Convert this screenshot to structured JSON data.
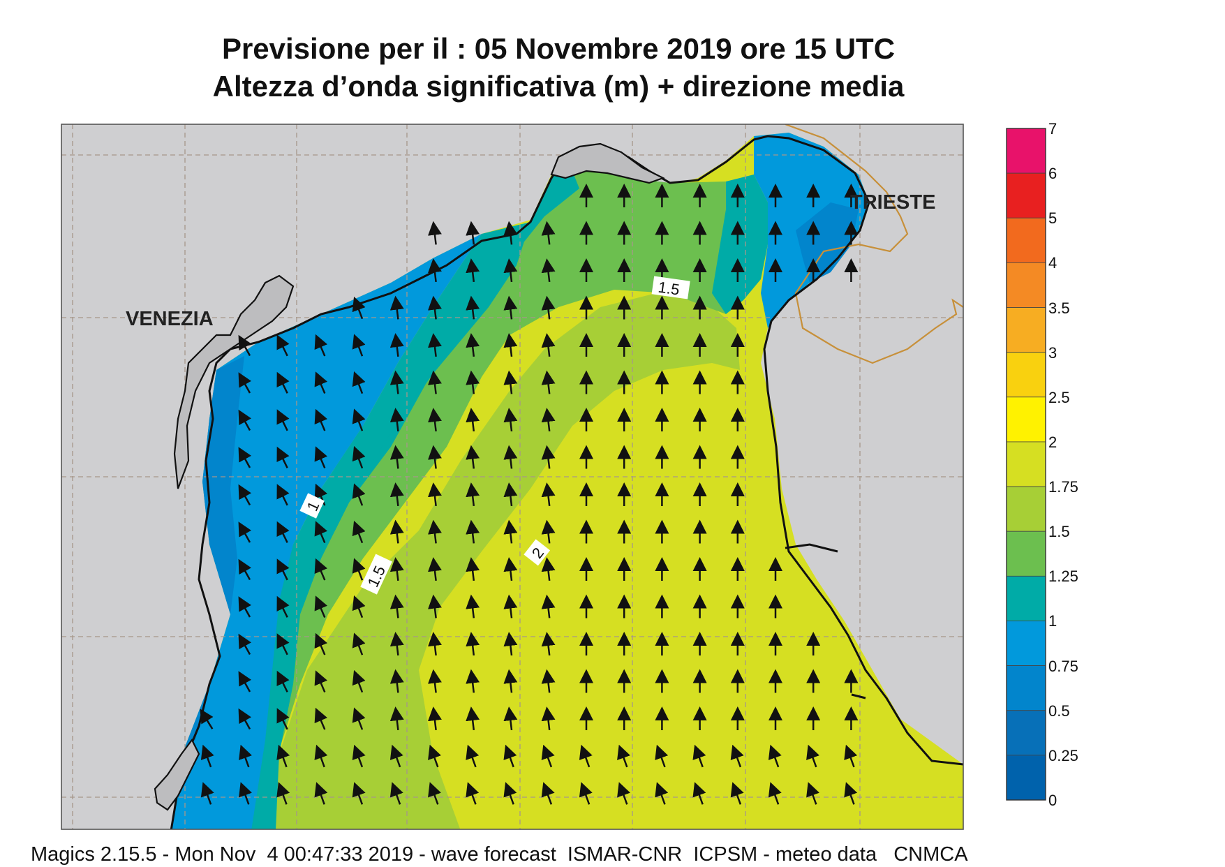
{
  "title": {
    "line1": "Previsione per il  :  05 Novembre  2019   ore 15 UTC",
    "line2": "Altezza d’onda significativa (m) + direzione media"
  },
  "map": {
    "city_labels": [
      "VENEZIA",
      "TRIESTE"
    ],
    "contour_labels": [
      "1",
      "1.5",
      "1.5",
      "2"
    ],
    "direction_arrows": "north-northwest to north (mean wave direction)"
  },
  "legend": {
    "ticks": [
      "7",
      "6",
      "5",
      "4",
      "3.5",
      "3",
      "2.5",
      "2",
      "1.75",
      "1.5",
      "1.25",
      "1",
      "0.75",
      "0.5",
      "0.25",
      "0"
    ],
    "colors": [
      "#e8126a",
      "#e82020",
      "#f26a1e",
      "#f48a24",
      "#f7ad22",
      "#f9d10f",
      "#fff200",
      "#d6df22",
      "#a7cf36",
      "#6cbf4f",
      "#00aba7",
      "#0199dc",
      "#0285cc",
      "#0770b8",
      "#0062ac"
    ]
  },
  "footer": "Magics 2.15.5 - Mon Nov  4 00:47:33 2019 - wave forecast  ISMAR-CNR  ICPSM - meteo data   CNMCA"
}
